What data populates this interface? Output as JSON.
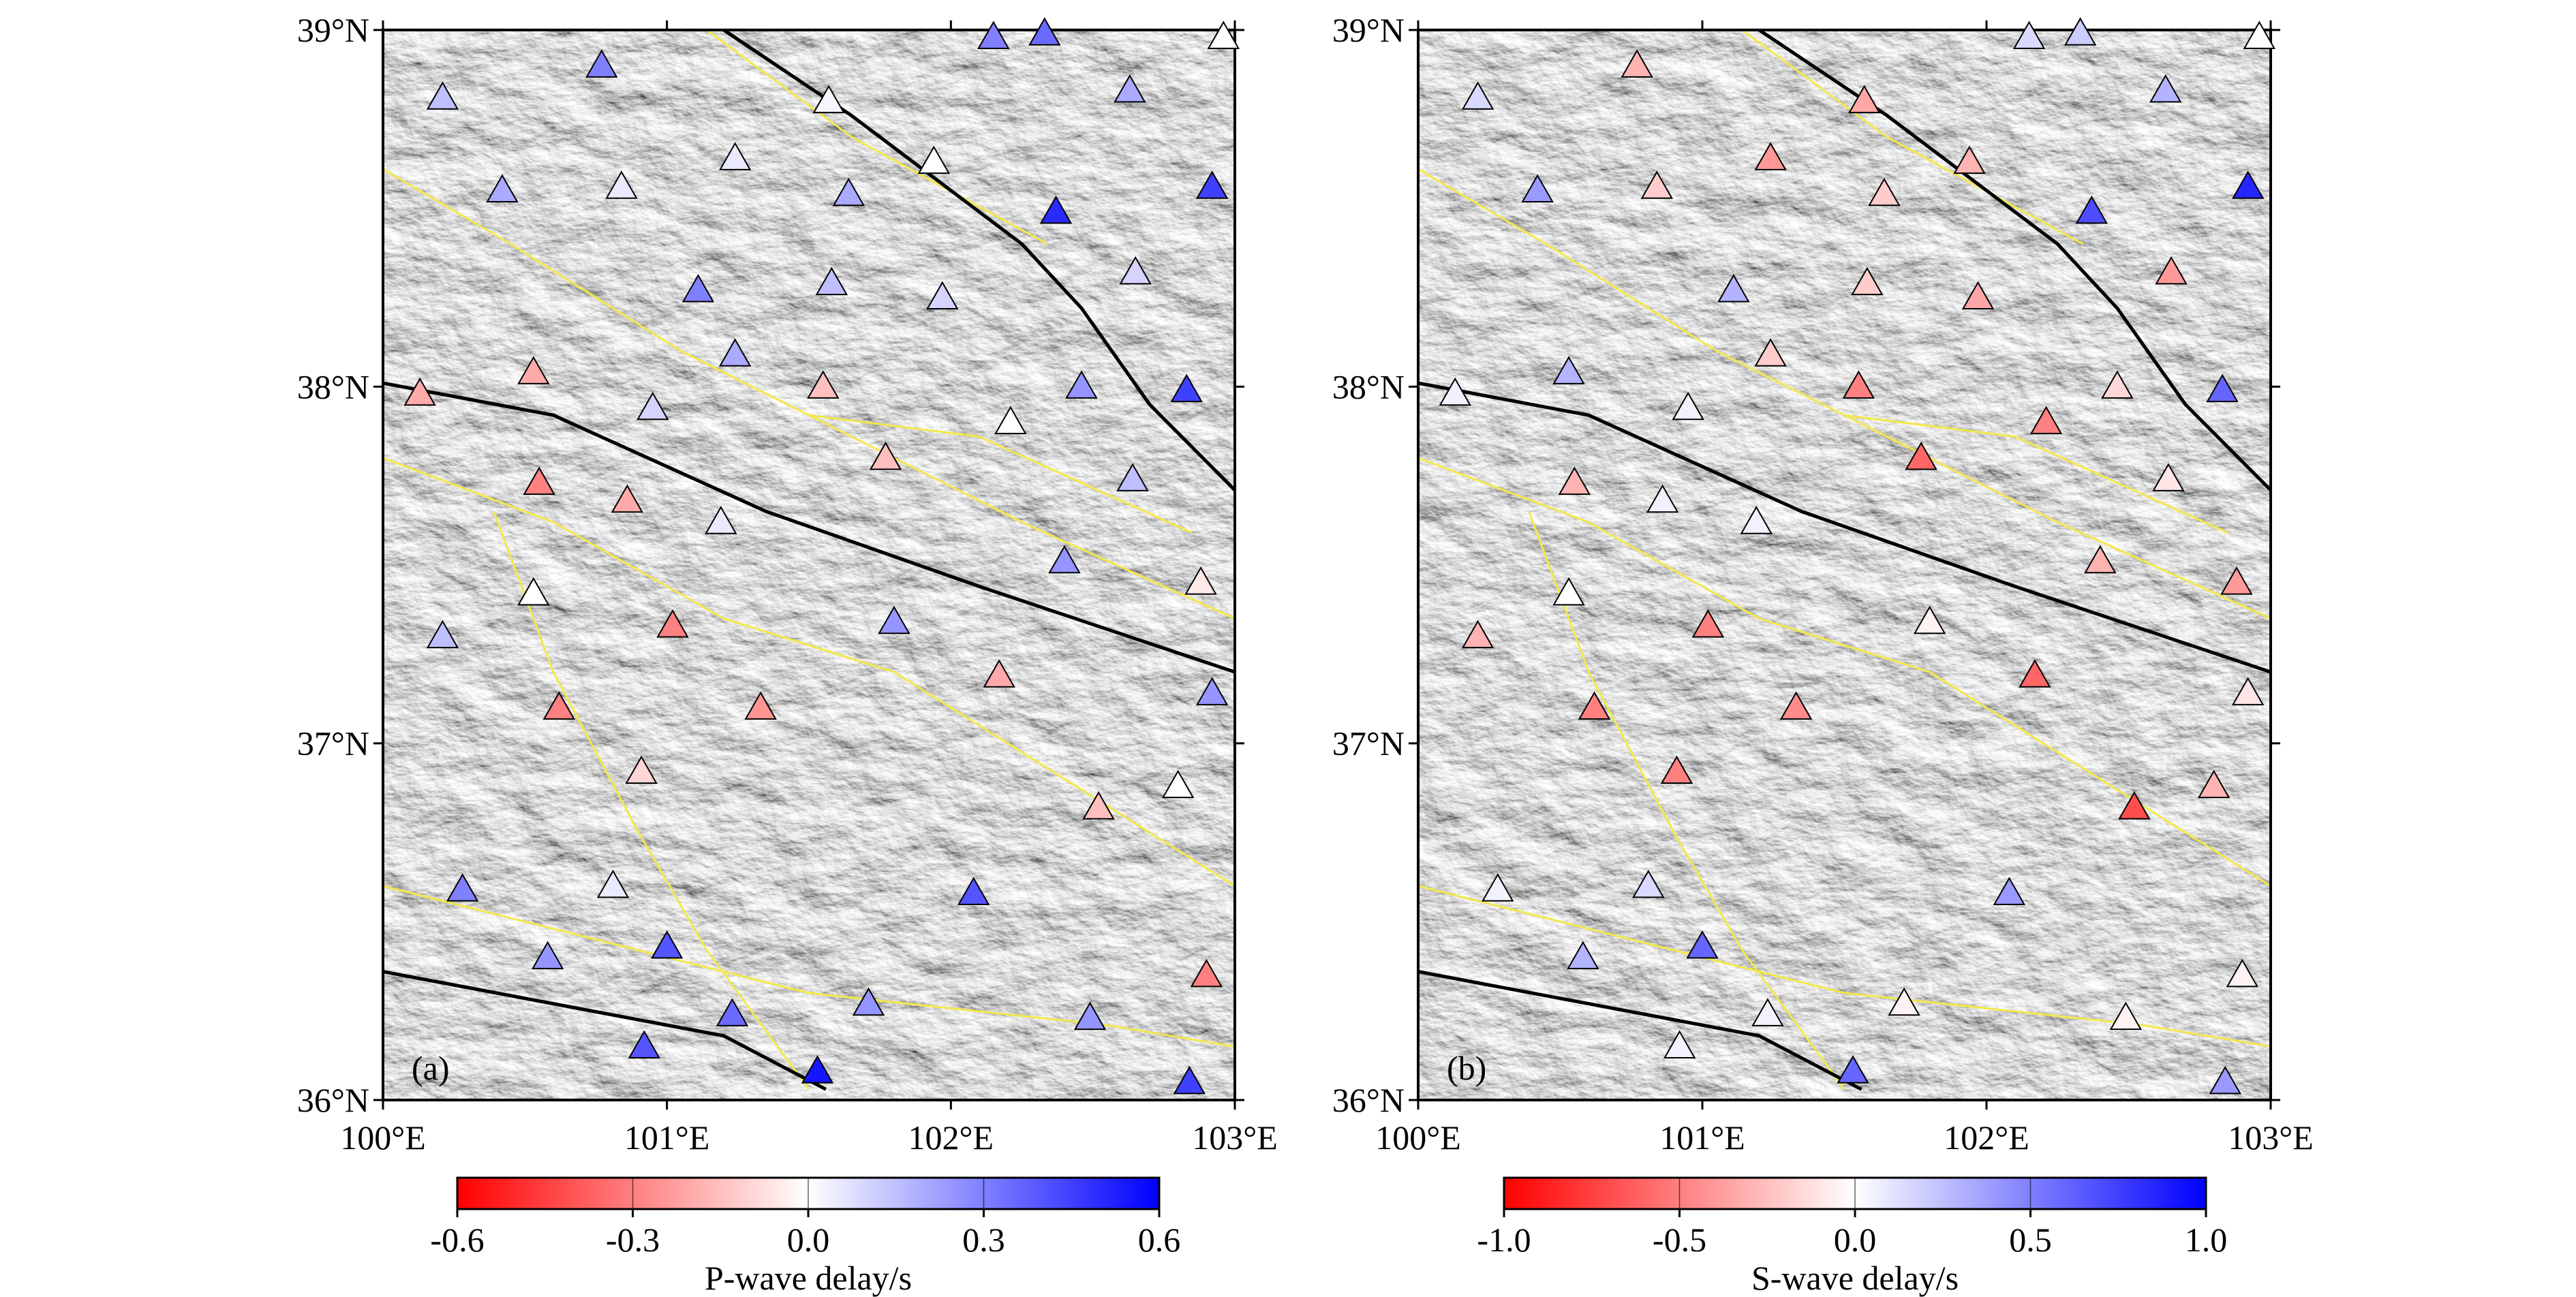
{
  "chart_data": [
    {
      "type": "scatter",
      "label": "(a)",
      "x": [
        100.21,
        100.77,
        102.15,
        102.33,
        102.96,
        102.63,
        101.57,
        100.42,
        100.84,
        101.24,
        101.64,
        101.94,
        102.37,
        102.92,
        101.11,
        101.58,
        101.97,
        102.65,
        101.24,
        100.13,
        100.53,
        100.95,
        101.55,
        101.77,
        102.21,
        102.46,
        102.83,
        100.55,
        100.86,
        101.19,
        102.64,
        102.4,
        102.88,
        100.53,
        100.21,
        101.02,
        101.8,
        102.17,
        102.92,
        100.62,
        101.33,
        100.91,
        102.52,
        102.8,
        100.28,
        100.81,
        102.08,
        100.58,
        101.0,
        102.9,
        101.23,
        101.71,
        102.49,
        100.92,
        101.53,
        102.84
      ],
      "y": [
        38.81,
        38.9,
        38.98,
        38.99,
        38.98,
        38.83,
        38.8,
        38.55,
        38.56,
        38.64,
        38.54,
        38.63,
        38.49,
        38.56,
        38.27,
        38.29,
        38.25,
        38.32,
        38.09,
        37.98,
        38.04,
        37.94,
        38.0,
        37.8,
        37.9,
        38.0,
        37.99,
        37.73,
        37.68,
        37.62,
        37.74,
        37.51,
        37.45,
        37.42,
        37.3,
        37.33,
        37.34,
        37.19,
        37.14,
        37.1,
        37.1,
        36.92,
        36.82,
        36.88,
        36.59,
        36.6,
        36.58,
        36.4,
        36.43,
        36.35,
        36.24,
        36.27,
        36.23,
        36.15,
        36.08,
        36.05
      ],
      "values": [
        0.15,
        0.3,
        0.3,
        0.35,
        0.0,
        0.2,
        0.02,
        0.2,
        0.05,
        0.05,
        0.2,
        0.0,
        0.5,
        0.45,
        0.3,
        0.15,
        0.1,
        0.1,
        0.2,
        -0.2,
        -0.2,
        0.1,
        -0.15,
        -0.15,
        0.0,
        0.25,
        0.45,
        -0.3,
        -0.2,
        0.05,
        0.15,
        0.25,
        -0.05,
        0.0,
        0.15,
        -0.3,
        0.25,
        -0.2,
        0.25,
        -0.3,
        -0.25,
        -0.1,
        -0.15,
        0.0,
        0.3,
        0.05,
        0.4,
        0.25,
        0.4,
        -0.3,
        0.35,
        0.25,
        0.25,
        0.4,
        0.55,
        0.45
      ],
      "xlim": [
        100,
        103
      ],
      "ylim": [
        36,
        39
      ],
      "xticks": [
        {
          "value": 100,
          "label": "100°E"
        },
        {
          "value": 101,
          "label": "101°E"
        },
        {
          "value": 102,
          "label": "102°E"
        },
        {
          "value": 103,
          "label": "103°E"
        }
      ],
      "yticks": [
        {
          "value": 36,
          "label": "36°N"
        },
        {
          "value": 37,
          "label": "37°N"
        },
        {
          "value": 38,
          "label": "38°N"
        },
        {
          "value": 39,
          "label": "39°N"
        }
      ],
      "colorbar": {
        "label": "P-wave delay/s",
        "clim": [
          -0.6,
          0.6
        ],
        "colors": [
          "#ff0000",
          "#ffffff",
          "#0000ff"
        ],
        "ticks": [
          -0.6,
          -0.3,
          {
            "value": 0,
            "label": "0.0"
          },
          0.3,
          0.6
        ]
      }
    },
    {
      "type": "scatter",
      "label": "(b)",
      "x": [
        100.21,
        100.77,
        102.15,
        102.33,
        102.96,
        102.63,
        101.57,
        100.42,
        100.84,
        101.24,
        101.64,
        101.94,
        102.37,
        102.92,
        101.11,
        101.58,
        101.97,
        102.65,
        101.24,
        100.13,
        100.53,
        100.95,
        101.55,
        101.77,
        102.21,
        102.46,
        102.83,
        100.55,
        100.86,
        101.19,
        102.64,
        102.4,
        102.88,
        100.53,
        100.21,
        101.02,
        101.8,
        102.17,
        102.92,
        100.62,
        101.33,
        100.91,
        102.52,
        102.8,
        100.28,
        100.81,
        102.08,
        100.58,
        101.0,
        102.9,
        101.23,
        101.71,
        102.49,
        100.92,
        101.53,
        102.84
      ],
      "y": [
        38.81,
        38.9,
        38.98,
        38.99,
        38.98,
        38.83,
        38.8,
        38.55,
        38.56,
        38.64,
        38.54,
        38.63,
        38.49,
        38.56,
        38.27,
        38.29,
        38.25,
        38.32,
        38.09,
        37.98,
        38.04,
        37.94,
        38.0,
        37.8,
        37.9,
        38.0,
        37.99,
        37.73,
        37.68,
        37.62,
        37.74,
        37.51,
        37.45,
        37.42,
        37.3,
        37.33,
        37.34,
        37.19,
        37.14,
        37.1,
        37.1,
        36.92,
        36.82,
        36.88,
        36.59,
        36.6,
        36.58,
        36.4,
        36.43,
        36.35,
        36.24,
        36.27,
        36.23,
        36.15,
        36.08,
        36.05
      ],
      "values": [
        0.15,
        -0.3,
        0.15,
        0.2,
        0.0,
        0.3,
        -0.35,
        0.4,
        -0.2,
        -0.4,
        -0.2,
        -0.3,
        0.7,
        0.85,
        0.3,
        -0.2,
        -0.35,
        -0.4,
        -0.2,
        0.05,
        0.3,
        0.05,
        -0.5,
        -0.6,
        -0.5,
        -0.15,
        0.6,
        -0.3,
        0.05,
        0.05,
        -0.1,
        -0.3,
        -0.4,
        0.0,
        -0.3,
        -0.5,
        -0.05,
        -0.6,
        -0.1,
        -0.5,
        -0.45,
        -0.5,
        -0.7,
        -0.3,
        0.05,
        0.15,
        0.4,
        0.3,
        0.6,
        -0.05,
        0.05,
        -0.05,
        -0.05,
        0.05,
        0.6,
        0.4
      ],
      "xlim": [
        100,
        103
      ],
      "ylim": [
        36,
        39
      ],
      "xticks": [
        {
          "value": 100,
          "label": "100°E"
        },
        {
          "value": 101,
          "label": "101°E"
        },
        {
          "value": 102,
          "label": "102°E"
        },
        {
          "value": 103,
          "label": "103°E"
        }
      ],
      "yticks": [
        {
          "value": 36,
          "label": "36°N"
        },
        {
          "value": 37,
          "label": "37°N"
        },
        {
          "value": 38,
          "label": "38°N"
        },
        {
          "value": 39,
          "label": "39°N"
        }
      ],
      "colorbar": {
        "label": "S-wave delay/s",
        "clim": [
          -1,
          1
        ],
        "colors": [
          "#ff0000",
          "#ffffff",
          "#0000ff"
        ],
        "ticks": [
          {
            "value": -1,
            "label": "-1.0"
          },
          -0.5,
          {
            "value": 0,
            "label": "0.0"
          },
          0.5,
          {
            "value": 1,
            "label": "1.0"
          }
        ]
      }
    }
  ]
}
